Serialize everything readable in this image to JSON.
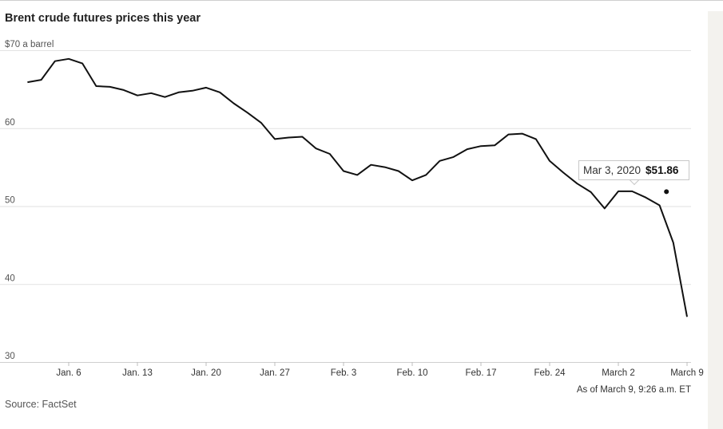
{
  "title": "Brent crude futures prices this year",
  "source": "Source: FactSet",
  "as_of": "As of March 9, 9:26 a.m. ET",
  "tooltip": {
    "date": "Mar 3, 2020",
    "value": "$51.86",
    "x": 43.5,
    "y": 51.86
  },
  "chart_data": {
    "type": "line",
    "title": "Brent crude futures prices this year",
    "ylabel": "$70 a barrel",
    "xlabel": "",
    "ylim": [
      30,
      70
    ],
    "xlim": [
      -3,
      49
    ],
    "y_ticks": [
      {
        "value": 70,
        "label": "$70 a barrel"
      },
      {
        "value": 60,
        "label": "60"
      },
      {
        "value": 50,
        "label": "50"
      },
      {
        "value": 40,
        "label": "40"
      },
      {
        "value": 30,
        "label": "30"
      }
    ],
    "x_ticks": [
      {
        "value": 0,
        "label": "Jan. 6"
      },
      {
        "value": 5,
        "label": "Jan. 13"
      },
      {
        "value": 10,
        "label": "Jan. 20"
      },
      {
        "value": 15,
        "label": "Jan. 27"
      },
      {
        "value": 20,
        "label": "Feb. 3"
      },
      {
        "value": 25,
        "label": "Feb. 10"
      },
      {
        "value": 30,
        "label": "Feb. 17"
      },
      {
        "value": 35,
        "label": "Feb. 24"
      },
      {
        "value": 40,
        "label": "March 2"
      },
      {
        "value": 45,
        "label": "March 9"
      }
    ],
    "grid": true,
    "series": [
      {
        "x": [
          -3,
          -2,
          -1,
          0,
          1,
          2,
          3,
          4,
          5,
          6,
          7,
          8,
          9,
          10,
          11,
          12,
          13,
          14,
          15,
          16,
          17,
          18,
          19,
          20,
          21,
          22,
          23,
          24,
          25,
          26,
          27,
          28,
          29,
          30,
          31,
          32,
          33,
          34,
          35,
          36,
          37,
          38,
          39,
          40,
          41,
          42,
          43,
          44,
          45
        ],
        "values": [
          65.9,
          66.2,
          68.6,
          68.9,
          68.3,
          65.4,
          65.3,
          64.9,
          64.2,
          64.5,
          64.0,
          64.6,
          64.8,
          65.2,
          64.6,
          63.2,
          62.0,
          60.7,
          58.6,
          58.8,
          58.9,
          57.4,
          56.7,
          54.5,
          54.0,
          55.3,
          55.0,
          54.5,
          53.3,
          54.0,
          55.8,
          56.3,
          57.3,
          57.7,
          57.8,
          59.2,
          59.3,
          58.6,
          55.8,
          54.3,
          52.9,
          51.8,
          49.7,
          51.9,
          51.9,
          51.1,
          50.1,
          45.3,
          35.8
        ]
      }
    ]
  }
}
